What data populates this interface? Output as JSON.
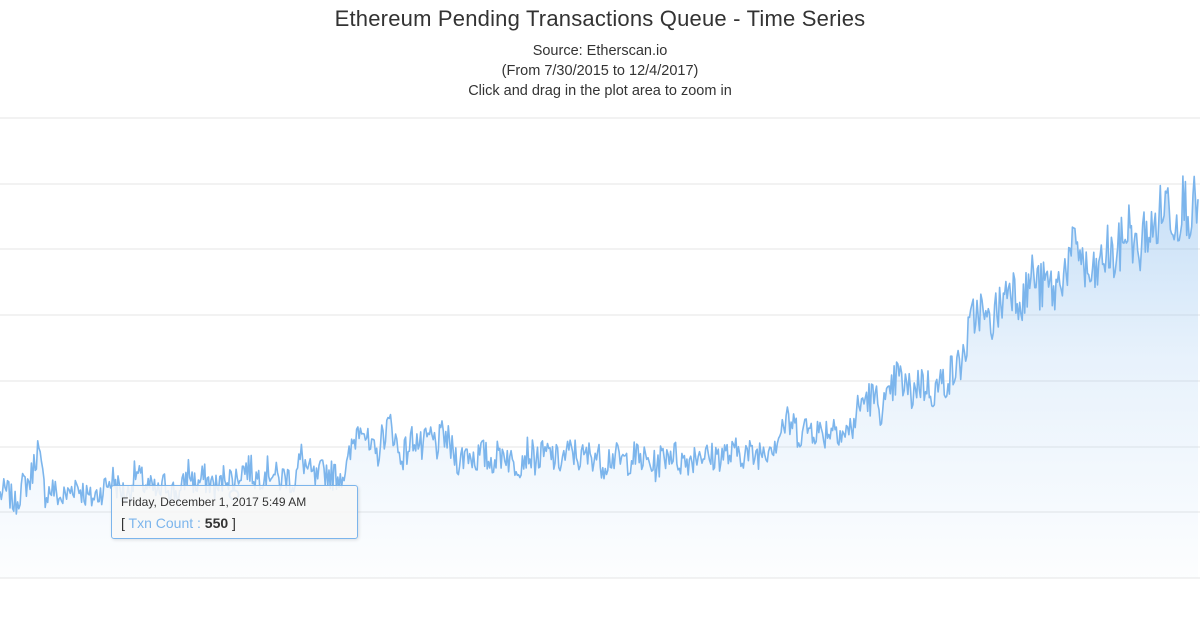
{
  "title": "Ethereum Pending Transactions Queue - Time Series",
  "source": "Source: Etherscan.io",
  "date_range": "(From 7/30/2015 to 12/4/2017)",
  "instruction": "Click and drag in the plot area to zoom in",
  "tooltip": {
    "date": "Friday, December 1, 2017 5:49 AM",
    "open_bracket": "[",
    "series_label": "Txn Count :",
    "value": "550",
    "close_bracket": "]"
  },
  "colors": {
    "series": "#7cb5ec",
    "grid": "#e6e6e6",
    "text": "#333333"
  },
  "chart_data": {
    "type": "area",
    "series": [
      {
        "name": "Txn Count",
        "values": [
          560,
          570,
          520,
          590,
          610,
          730,
          560,
          580,
          540,
          560,
          600,
          570,
          540,
          560,
          590,
          620,
          570,
          560,
          640,
          600,
          580,
          560,
          600,
          570,
          560,
          650,
          590,
          620,
          600,
          580,
          640,
          600,
          650,
          660,
          620,
          640,
          650,
          610,
          630,
          600,
          700,
          640,
          610,
          650,
          630,
          630,
          650,
          760,
          850,
          720,
          700,
          790,
          820,
          700,
          720,
          780,
          720,
          770,
          740,
          780,
          720,
          680,
          720,
          690,
          710,
          680,
          700,
          720,
          670,
          680,
          720,
          690,
          700,
          710,
          680,
          700,
          720,
          690,
          700,
          710,
          670,
          700,
          690,
          680,
          700,
          690,
          680,
          660,
          700,
          720,
          690,
          680,
          700,
          720,
          690,
          700,
          710,
          700,
          720,
          710,
          700,
          720,
          740,
          760,
          820,
          820,
          790,
          800,
          810,
          780,
          800,
          820,
          780,
          800,
          880,
          920,
          910,
          880,
          900,
          1000,
          960,
          930,
          980,
          960,
          940,
          970,
          1000,
          1020,
          1080,
          1200,
          1250,
          1180,
          1220,
          1270,
          1350,
          1300,
          1280,
          1380,
          1320,
          1340,
          1300,
          1380,
          1420,
          1500,
          1380,
          1350,
          1400,
          1460,
          1420,
          1500,
          1560,
          1420,
          1540,
          1520,
          1600,
          1650,
          1560,
          1650,
          1600,
          1650
        ]
      }
    ],
    "highlight": {
      "label": "Friday, December 1, 2017 5:49 AM",
      "value": 550
    },
    "ylim": [
      250,
      1950
    ],
    "grid": true,
    "legend": "none"
  }
}
